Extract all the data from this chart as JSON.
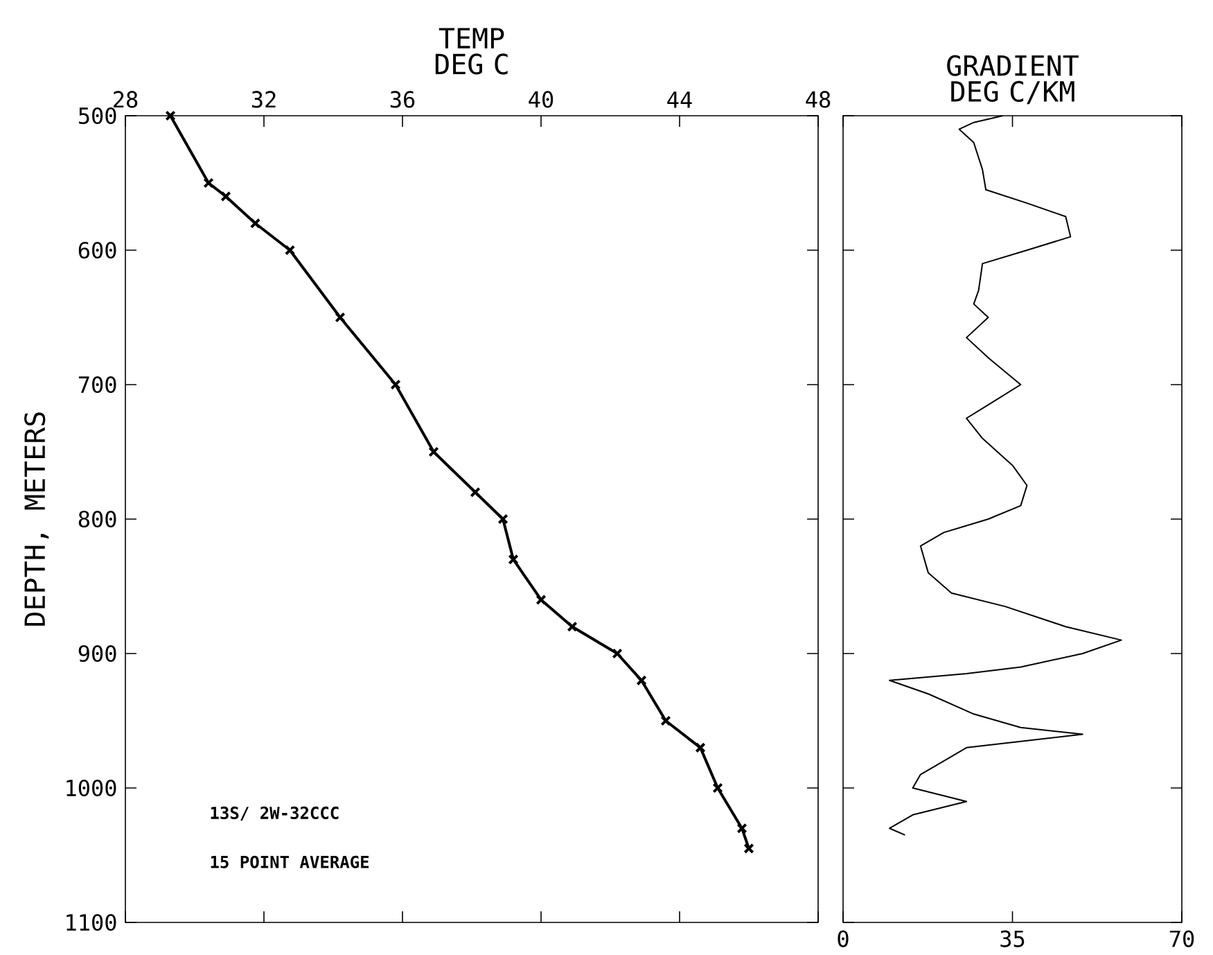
{
  "chart_data": [
    {
      "type": "line",
      "xlabel": "TEMP DEG C",
      "ylabel": "DEPTH, METERS",
      "marker": "cross",
      "color": "#000000",
      "x": [
        29.3,
        30.4,
        30.9,
        31.75,
        32.75,
        34.2,
        35.8,
        36.9,
        38.1,
        38.9,
        39.2,
        40.0,
        40.9,
        42.2,
        42.9,
        43.6,
        44.6,
        45.1,
        45.8,
        46.0
      ],
      "values": [
        500,
        550,
        560,
        580,
        600,
        650,
        700,
        750,
        780,
        800,
        830,
        860,
        880,
        900,
        920,
        950,
        970,
        1000,
        1030,
        1045
      ],
      "xlim": [
        28,
        48
      ],
      "xticks": [
        28,
        32,
        36,
        40,
        44,
        48
      ],
      "ylim": [
        1100,
        500
      ],
      "yticks": [
        500,
        600,
        700,
        800,
        900,
        1000,
        1100
      ],
      "annotations": [
        "13S/ 2W-32CCC",
        "15 POINT AVERAGE"
      ]
    },
    {
      "type": "line",
      "xlabel": "GRADIENT DEG C/KM",
      "color": "#000000",
      "tick_labels": "x",
      "x": [
        33,
        27,
        24,
        27,
        28.8,
        29.5,
        38,
        46,
        47,
        38,
        28.8,
        28,
        27,
        30,
        25.5,
        30,
        36.7,
        30,
        25.5,
        28.8,
        35,
        38,
        36.7,
        30,
        20.8,
        16,
        17.6,
        22.4,
        33.5,
        46,
        57.5,
        49.5,
        36.7,
        25.5,
        9.6,
        17.6,
        27,
        36.7,
        49.5,
        25.5,
        20.8,
        16,
        14.4,
        25.5,
        14.4,
        9.6,
        12.8
      ],
      "values": [
        500,
        505,
        510,
        520,
        540,
        555,
        565,
        575,
        590,
        600,
        610,
        630,
        640,
        650,
        665,
        680,
        700,
        715,
        725,
        740,
        760,
        775,
        790,
        800,
        810,
        820,
        840,
        855,
        865,
        880,
        890,
        900,
        910,
        915,
        920,
        930,
        945,
        955,
        960,
        970,
        980,
        990,
        1000,
        1010,
        1020,
        1030,
        1035
      ],
      "xlim": [
        0,
        70
      ],
      "xticks": [
        0,
        35,
        70
      ],
      "ylim": [
        1100,
        500
      ],
      "yticks": [
        500,
        600,
        700,
        800,
        900,
        1000,
        1100
      ]
    }
  ]
}
